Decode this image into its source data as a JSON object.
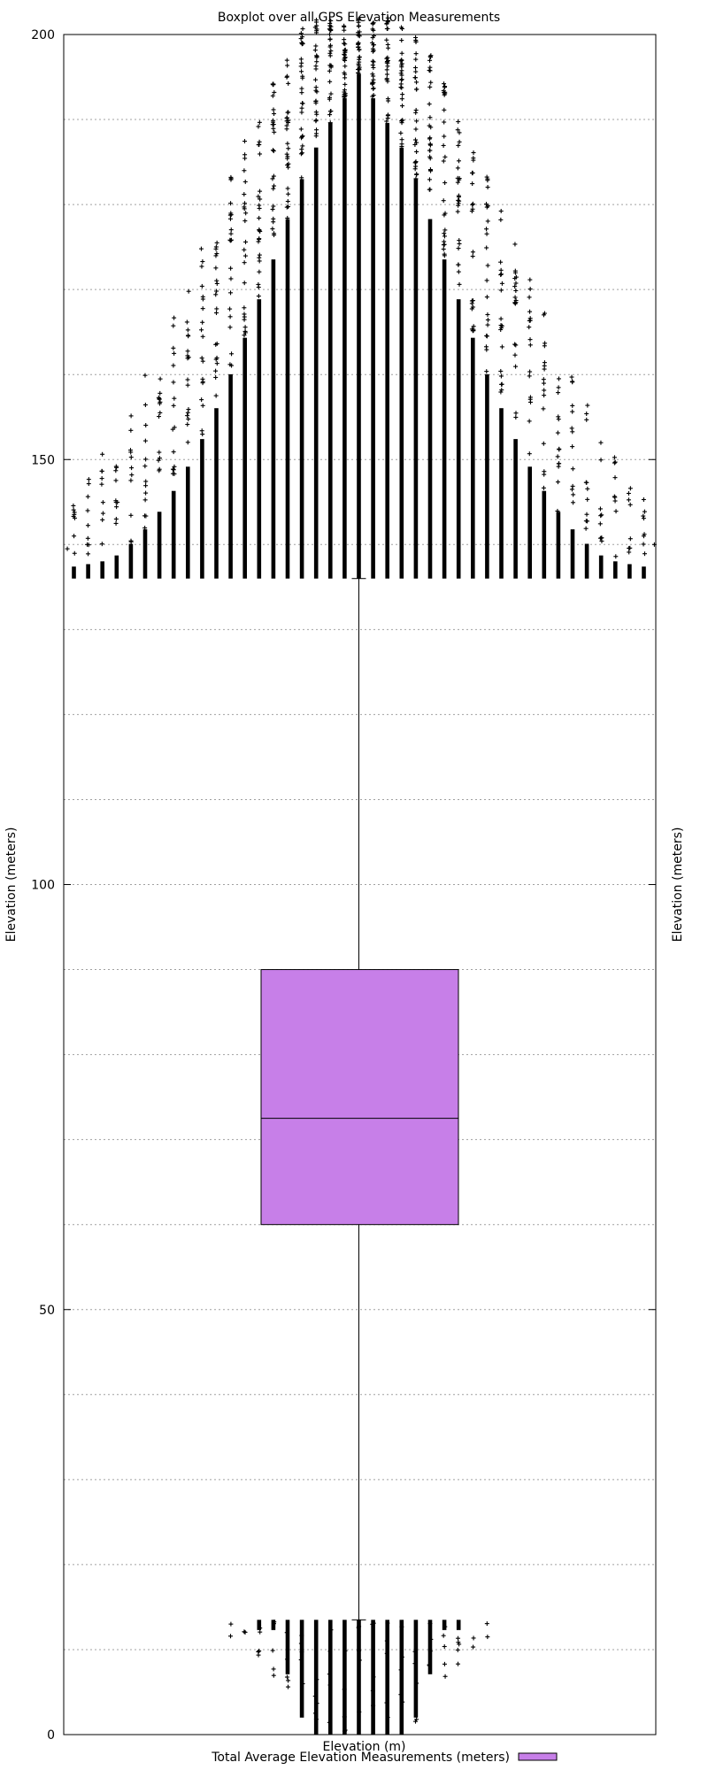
{
  "chart_data": {
    "type": "boxplot",
    "title": "Boxplot over all GPS Elevation Measurements",
    "xlabel": "Elevation (m)",
    "ylabel": "Elevation (meters)",
    "y2label": "Elevation (meters)",
    "ylim": [
      0,
      200
    ],
    "yticks": [
      0,
      50,
      100,
      150,
      200
    ],
    "ytick_labels": [
      "0",
      "50",
      "100",
      "150",
      "200"
    ],
    "grid": true,
    "legend_position": "bottom-center",
    "series": [
      {
        "name": "Total Average Elevation Measurements (meters)",
        "color": "#c77fe8",
        "whisker_low": 13.5,
        "q1": 60,
        "median": 72.5,
        "q3": 90,
        "whisker_high": 136,
        "outliers_high_range": [
          136,
          202
        ],
        "outliers_low_range": [
          0,
          13.5
        ]
      }
    ]
  }
}
